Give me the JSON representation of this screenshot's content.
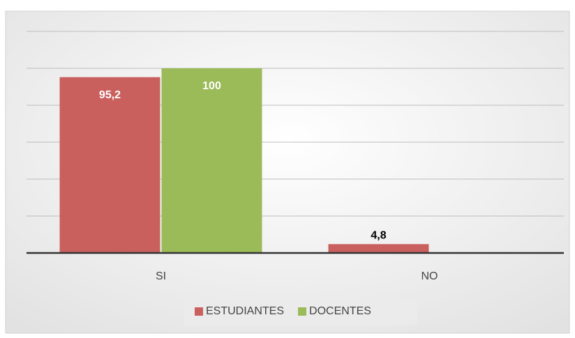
{
  "chart_data": {
    "type": "bar",
    "categories": [
      "SI",
      "NO"
    ],
    "series": [
      {
        "name": "ESTUDIANTES",
        "color": "#c9605e",
        "values": [
          95.2,
          4.8
        ],
        "value_labels": [
          "95,2",
          "4,8"
        ]
      },
      {
        "name": "DOCENTES",
        "color": "#9bbb59",
        "values": [
          100,
          0
        ],
        "value_labels": [
          "100",
          null
        ]
      }
    ],
    "ylim": [
      0,
      120
    ],
    "yticks": [
      0,
      20,
      40,
      60,
      80,
      100,
      120
    ],
    "grid": true,
    "legend": "bottom"
  }
}
